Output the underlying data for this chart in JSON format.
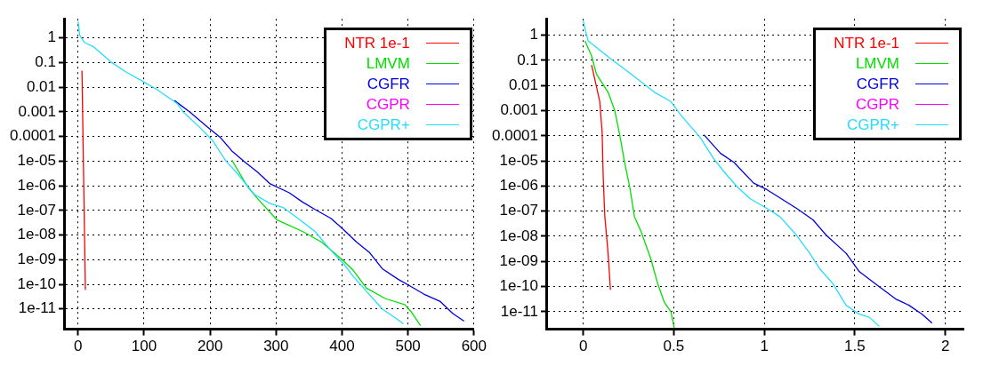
{
  "chart_data": [
    {
      "type": "line",
      "xlim": [
        -20,
        600
      ],
      "xticks": [
        0,
        100,
        200,
        300,
        400,
        500,
        600
      ],
      "ylim": [
        1.5e-12,
        6
      ],
      "log": "y",
      "grid": true,
      "legend": "top right",
      "yticks": [
        {
          "value": 1,
          "label": "1"
        },
        {
          "value": 0.1,
          "label": "0.1"
        },
        {
          "value": 0.01,
          "label": "0.01"
        },
        {
          "value": 0.001,
          "label": "0.001"
        },
        {
          "value": 0.0001,
          "label": "0.0001"
        },
        {
          "value": 1e-05,
          "label": "1e-05"
        },
        {
          "value": 1e-06,
          "label": "1e-06"
        },
        {
          "value": 1e-07,
          "label": "1e-07"
        },
        {
          "value": 1e-08,
          "label": "1e-08"
        },
        {
          "value": 1e-09,
          "label": "1e-09"
        },
        {
          "value": 1e-10,
          "label": "1e-10"
        },
        {
          "value": 1e-11,
          "label": "1e-11"
        }
      ],
      "series": [
        {
          "name": "NTR 1e-1",
          "color": "#ff0000",
          "x": [
            5.8,
            11
          ],
          "values": [
            0.047,
            6e-11
          ]
        },
        {
          "name": "LMVM",
          "color": "#00e000",
          "x": [
            233,
            257,
            272,
            301,
            340,
            369,
            388,
            403,
            417,
            437,
            466,
            495,
            505,
            519
          ],
          "values": [
            1.1e-05,
            9e-07,
            3e-07,
            4.2e-08,
            1.4e-08,
            5.2e-09,
            1.9e-09,
            8.5e-10,
            3.7e-10,
            7e-11,
            2.6e-11,
            1.5e-11,
            7.6e-12,
            2.1e-12
          ]
        },
        {
          "name": "CGFR",
          "color": "#0000dd",
          "x": [
            146,
            170,
            194,
            216,
            233,
            252,
            272,
            291,
            320,
            340,
            359,
            383,
            403,
            422,
            442,
            461,
            485,
            505,
            524,
            549,
            568,
            585
          ],
          "values": [
            0.0029,
            0.00095,
            0.00027,
            8.9e-05,
            2.6e-05,
            9.6e-06,
            3.6e-06,
            1.2e-06,
            5.2e-07,
            2.2e-07,
            1.1e-07,
            4.8e-08,
            1.6e-08,
            5.2e-09,
            1.9e-09,
            4.3e-10,
            1.6e-10,
            8e-11,
            4e-11,
            2e-11,
            6.5e-12,
            3.2e-12
          ]
        },
        {
          "name": "CGPR",
          "color": "#ff00ff"
        },
        {
          "name": "CGPR+",
          "color": "#22ddff",
          "x": [
            0,
            2.4,
            9.7,
            24,
            49,
            73,
            97,
            121,
            150,
            160,
            184,
            204,
            223,
            243,
            267,
            291,
            311,
            330,
            359,
            374,
            388,
            403,
            417,
            437,
            461,
            481,
            493
          ],
          "values": [
            4.6,
            1.3,
            0.66,
            0.43,
            0.11,
            0.041,
            0.018,
            0.0076,
            0.0022,
            0.00095,
            0.00024,
            6.8e-05,
            1.1e-05,
            2.8e-06,
            4.5e-07,
            1.9e-07,
            1.3e-07,
            5.5e-08,
            1.4e-08,
            4.6e-09,
            1.7e-09,
            6.5e-10,
            2.1e-10,
            5.2e-11,
            1e-11,
            4.3e-12,
            2.5e-12
          ]
        }
      ]
    },
    {
      "type": "line",
      "xlim": [
        -0.2,
        2.1
      ],
      "xticks": [
        0,
        0.5,
        1,
        1.5,
        2
      ],
      "ylim": [
        2e-12,
        4.5
      ],
      "log": "y",
      "grid": true,
      "legend": "top right",
      "yticks": [
        {
          "value": 1,
          "label": "1"
        },
        {
          "value": 0.1,
          "label": "0.1"
        },
        {
          "value": 0.01,
          "label": "0.01"
        },
        {
          "value": 0.001,
          "label": "0.001"
        },
        {
          "value": 0.0001,
          "label": "0.0001"
        },
        {
          "value": 1e-05,
          "label": "1e-05"
        },
        {
          "value": 1e-06,
          "label": "1e-06"
        },
        {
          "value": 1e-07,
          "label": "1e-07"
        },
        {
          "value": 1e-08,
          "label": "1e-08"
        },
        {
          "value": 1e-09,
          "label": "1e-09"
        },
        {
          "value": 1e-10,
          "label": "1e-10"
        },
        {
          "value": 1e-11,
          "label": "1e-11"
        }
      ],
      "series": [
        {
          "name": "NTR 1e-1",
          "color": "#ff0000",
          "x": [
            0.046,
            0.091,
            0.104,
            0.11,
            0.119,
            0.137,
            0.15
          ],
          "values": [
            0.066,
            0.0023,
            0.00014,
            2.2e-06,
            5.9e-08,
            2.1e-09,
            7.4e-11
          ]
        },
        {
          "name": "LMVM",
          "color": "#00e000",
          "x": [
            0.009,
            0.046,
            0.073,
            0.137,
            0.174,
            0.201,
            0.228,
            0.256,
            0.283,
            0.32,
            0.374,
            0.411,
            0.447,
            0.484,
            0.502
          ],
          "values": [
            0.6,
            0.15,
            0.028,
            0.0054,
            0.001,
            0.00011,
            8.9e-06,
            9.5e-07,
            5.9e-08,
            1.5e-08,
            1.2e-09,
            1.3e-10,
            2.4e-11,
            1e-11,
            2.3e-12
          ]
        },
        {
          "name": "CGFR",
          "color": "#0000dd",
          "x": [
            0.666,
            0.758,
            0.831,
            0.941,
            1.014,
            1.178,
            1.269,
            1.342,
            1.452,
            1.525,
            1.635,
            1.726,
            1.799,
            1.872,
            1.927
          ],
          "values": [
            0.00011,
            2e-05,
            8.9e-06,
            1.3e-06,
            7.2e-07,
            1.3e-07,
            4.5e-08,
            1.1e-08,
            2.1e-09,
            3.9e-10,
            9.8e-11,
            3.2e-11,
            1.8e-11,
            7.9e-12,
            3.5e-12
          ]
        },
        {
          "name": "CGPR",
          "color": "#ff00ff"
        },
        {
          "name": "CGPR+",
          "color": "#22ddff",
          "x": [
            0,
            0.013,
            0.027,
            0.155,
            0.265,
            0.393,
            0.484,
            0.539,
            0.648,
            0.721,
            0.776,
            0.849,
            0.922,
            1.014,
            1.087,
            1.178,
            1.251,
            1.306,
            1.379,
            1.452,
            1.525,
            1.58,
            1.635
          ],
          "values": [
            3.7,
            1.4,
            0.6,
            0.11,
            0.028,
            0.0054,
            0.0023,
            0.00066,
            8.1e-05,
            1.2e-05,
            3.8e-06,
            9.5e-07,
            3.1e-07,
            1.3e-07,
            5.9e-08,
            1.1e-08,
            2.1e-09,
            5.1e-10,
            1.3e-10,
            1.8e-11,
            7.9e-12,
            6e-12,
            2.6e-12
          ]
        }
      ]
    }
  ]
}
